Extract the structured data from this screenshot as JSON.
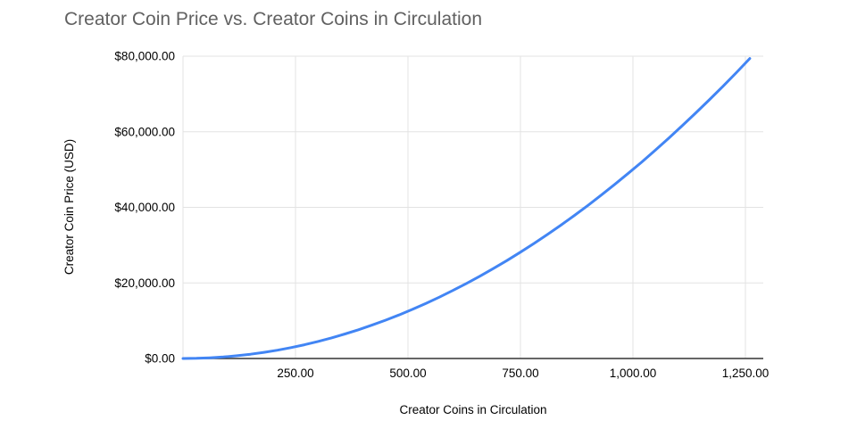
{
  "chart_data": {
    "type": "line",
    "title": "Creator Coin Price vs. Creator Coins in Circulation",
    "xlabel": "Creator Coins in Circulation",
    "ylabel": "Creator Coin Price (USD)",
    "xlim": [
      0,
      1290
    ],
    "ylim": [
      0,
      80000
    ],
    "grid": true,
    "line_color": "#4285f4",
    "x_ticks": [
      250,
      500,
      750,
      1000,
      1250
    ],
    "x_tick_labels": [
      "250.00",
      "500.00",
      "750.00",
      "1,000.00",
      "1,250.00"
    ],
    "y_ticks": [
      0,
      20000,
      40000,
      60000,
      80000
    ],
    "y_tick_labels": [
      "$0.00",
      "$20,000.00",
      "$40,000.00",
      "$60,000.00",
      "$80,000.00"
    ],
    "x": [
      0,
      30,
      60,
      90,
      120,
      150,
      180,
      210,
      240,
      270,
      300,
      330,
      360,
      390,
      420,
      450,
      480,
      510,
      540,
      570,
      600,
      630,
      660,
      690,
      720,
      750,
      780,
      810,
      840,
      870,
      900,
      930,
      960,
      990,
      1020,
      1050,
      1080,
      1110,
      1140,
      1170,
      1200,
      1230,
      1260
    ],
    "y": [
      0,
      45,
      180,
      405,
      720,
      1125,
      1620,
      2205,
      2880,
      3645,
      4500,
      5445,
      6480,
      7605,
      8820,
      10125,
      11520,
      13005,
      14580,
      16245,
      18000,
      19845,
      21780,
      23805,
      25920,
      28125,
      30420,
      32805,
      35280,
      37845,
      40500,
      43245,
      46080,
      49005,
      52020,
      55125,
      58320,
      61605,
      64980,
      68445,
      72000,
      75645,
      79380
    ]
  }
}
